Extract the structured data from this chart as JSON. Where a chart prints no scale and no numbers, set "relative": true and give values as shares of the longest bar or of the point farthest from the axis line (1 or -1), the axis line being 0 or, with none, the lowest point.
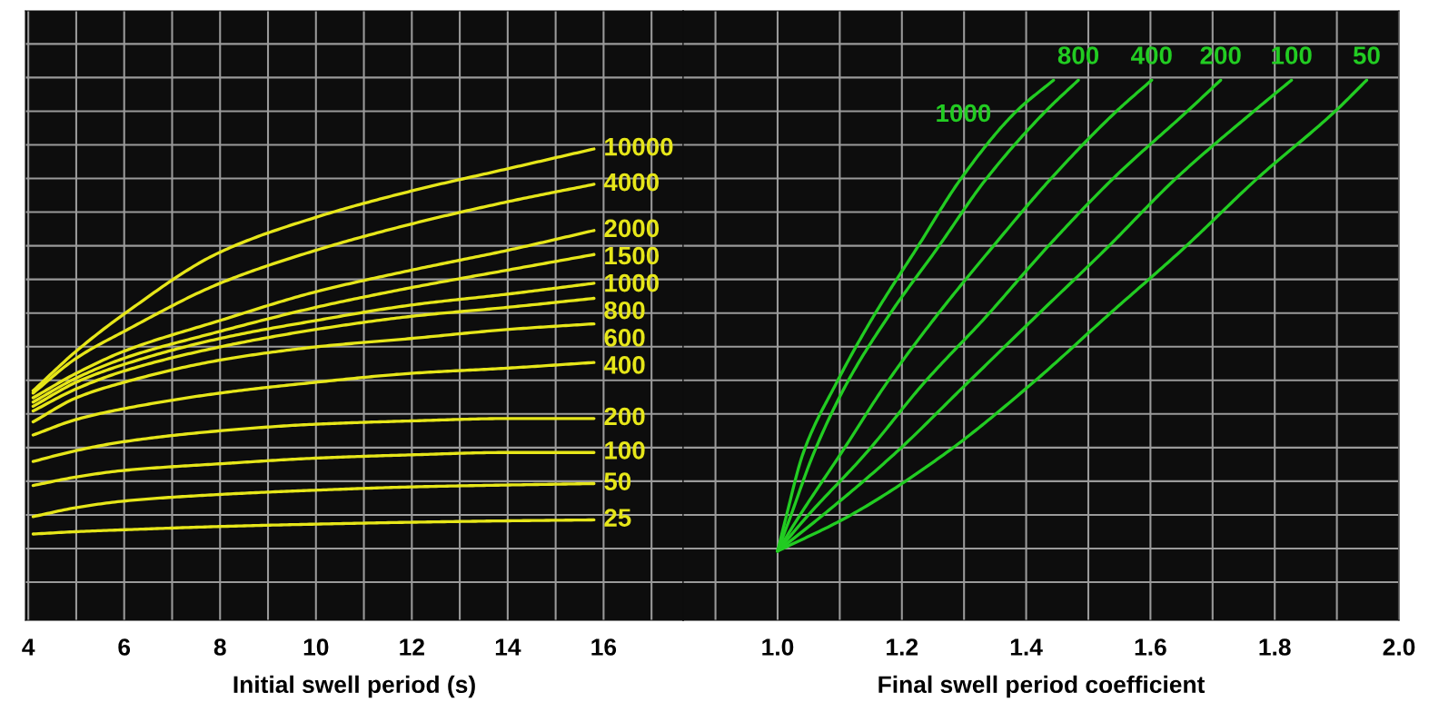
{
  "chart_data": [
    {
      "type": "line",
      "relative": true,
      "xlabel": "Initial swell period (s)",
      "xlim": [
        3.94,
        17.66
      ],
      "xticks": [
        4,
        {
          "value": 5,
          "label": null
        },
        6,
        {
          "value": 7,
          "label": null
        },
        8,
        {
          "value": 9,
          "label": null
        },
        10,
        {
          "value": 11,
          "label": null
        },
        12,
        {
          "value": 13,
          "label": null
        },
        14,
        {
          "value": 15,
          "label": null
        },
        16,
        {
          "value": 17,
          "label": null
        }
      ],
      "grid": true,
      "legend": false,
      "series": [
        {
          "name": "10000",
          "color": "#e6e619",
          "x": [
            4.1,
            5,
            6,
            8,
            10,
            12,
            14,
            15.8
          ],
          "values": [
            0.487,
            0.571,
            0.65,
            0.781,
            0.855,
            0.911,
            0.958,
            1.0
          ]
        },
        {
          "name": "4000",
          "color": "#e6e619",
          "x": [
            4.1,
            5,
            6,
            8,
            10,
            12,
            14,
            15.8
          ],
          "values": [
            0.482,
            0.556,
            0.613,
            0.715,
            0.785,
            0.841,
            0.888,
            0.925
          ]
        },
        {
          "name": "2000",
          "color": "#e6e619",
          "x": [
            4.1,
            5,
            6,
            8,
            10,
            12,
            14,
            15.8
          ],
          "values": [
            0.472,
            0.524,
            0.571,
            0.636,
            0.697,
            0.743,
            0.785,
            0.827
          ]
        },
        {
          "name": "1500",
          "color": "#e6e619",
          "x": [
            4.1,
            5,
            6,
            8,
            10,
            12,
            14,
            15.8
          ],
          "values": [
            0.463,
            0.514,
            0.556,
            0.613,
            0.664,
            0.706,
            0.743,
            0.776
          ]
        },
        {
          "name": "1000",
          "color": "#e6e619",
          "x": [
            4.1,
            5,
            6,
            8,
            10,
            12,
            14,
            15.8
          ],
          "values": [
            0.454,
            0.505,
            0.543,
            0.598,
            0.636,
            0.669,
            0.692,
            0.715
          ]
        },
        {
          "name": "800",
          "color": "#e6e619",
          "x": [
            4.1,
            5,
            6,
            8,
            10,
            12,
            14,
            15.8
          ],
          "values": [
            0.444,
            0.491,
            0.529,
            0.58,
            0.617,
            0.645,
            0.664,
            0.683
          ]
        },
        {
          "name": "600",
          "color": "#e6e619",
          "x": [
            4.1,
            5,
            6,
            8,
            10,
            12,
            14,
            15.8
          ],
          "values": [
            0.421,
            0.472,
            0.505,
            0.552,
            0.58,
            0.598,
            0.617,
            0.629
          ]
        },
        {
          "name": "400",
          "color": "#e6e619",
          "x": [
            4.1,
            5,
            6,
            8,
            10,
            12,
            14,
            15.8
          ],
          "values": [
            0.393,
            0.426,
            0.449,
            0.482,
            0.505,
            0.524,
            0.535,
            0.547
          ]
        },
        {
          "name": "200",
          "color": "#e6e619",
          "x": [
            4.1,
            5,
            6,
            8,
            10,
            12,
            14,
            15.8
          ],
          "values": [
            0.337,
            0.36,
            0.379,
            0.402,
            0.416,
            0.423,
            0.428,
            0.428
          ]
        },
        {
          "name": "100",
          "color": "#e6e619",
          "x": [
            4.1,
            5,
            6,
            8,
            10,
            12,
            14,
            15.8
          ],
          "values": [
            0.286,
            0.304,
            0.318,
            0.332,
            0.344,
            0.351,
            0.356,
            0.356
          ]
        },
        {
          "name": "50",
          "color": "#e6e619",
          "x": [
            4.1,
            5,
            6,
            8,
            10,
            12,
            14,
            15.8
          ],
          "values": [
            0.22,
            0.239,
            0.253,
            0.267,
            0.276,
            0.283,
            0.287,
            0.29
          ]
        },
        {
          "name": "25",
          "color": "#e6e619",
          "x": [
            4.1,
            5,
            6,
            8,
            10,
            12,
            14,
            15.8
          ],
          "values": [
            0.183,
            0.188,
            0.192,
            0.199,
            0.204,
            0.208,
            0.211,
            0.213
          ]
        }
      ]
    },
    {
      "type": "line",
      "relative": true,
      "xlabel": "Final swell period coefficient",
      "xlim": [
        0.848,
        2.0
      ],
      "xticks": [
        {
          "value": 0.9,
          "label": null
        },
        {
          "value": 1.0,
          "label": "1.0"
        },
        {
          "value": 1.1,
          "label": null
        },
        {
          "value": 1.2,
          "label": "1.2"
        },
        {
          "value": 1.3,
          "label": null
        },
        {
          "value": 1.4,
          "label": "1.4"
        },
        {
          "value": 1.5,
          "label": null
        },
        {
          "value": 1.6,
          "label": "1.6"
        },
        {
          "value": 1.7,
          "label": null
        },
        {
          "value": 1.8,
          "label": "1.8"
        },
        {
          "value": 1.9,
          "label": null
        },
        {
          "value": 2.0,
          "label": "2.0"
        }
      ],
      "grid": true,
      "legend": false,
      "series": [
        {
          "name": "1000",
          "color": "#22cc22",
          "x": [
            1.0,
            1.014,
            1.041,
            1.095,
            1.155,
            1.223,
            1.296,
            1.384,
            1.444
          ],
          "values": [
            0.128,
            0.193,
            0.309,
            0.44,
            0.564,
            0.687,
            0.819,
            0.942,
            1.0
          ]
        },
        {
          "name": "800",
          "color": "#22cc22",
          "x": [
            1.0,
            1.021,
            1.058,
            1.112,
            1.179,
            1.256,
            1.337,
            1.431,
            1.484
          ],
          "values": [
            0.128,
            0.193,
            0.309,
            0.44,
            0.564,
            0.687,
            0.819,
            0.942,
            1.0
          ]
        },
        {
          "name": "400",
          "color": "#22cc22",
          "x": [
            1.0,
            1.035,
            1.102,
            1.176,
            1.256,
            1.343,
            1.441,
            1.545,
            1.602
          ],
          "values": [
            0.128,
            0.193,
            0.309,
            0.44,
            0.564,
            0.687,
            0.819,
            0.942,
            1.0
          ]
        },
        {
          "name": "200",
          "color": "#22cc22",
          "x": [
            1.0,
            1.048,
            1.142,
            1.236,
            1.337,
            1.431,
            1.541,
            1.659,
            1.713
          ],
          "values": [
            0.128,
            0.193,
            0.309,
            0.44,
            0.564,
            0.687,
            0.819,
            0.942,
            1.0
          ]
        },
        {
          "name": "100",
          "color": "#22cc22",
          "x": [
            1.0,
            1.071,
            1.189,
            1.306,
            1.417,
            1.528,
            1.642,
            1.766,
            1.827
          ],
          "values": [
            0.128,
            0.193,
            0.309,
            0.44,
            0.564,
            0.687,
            0.819,
            0.942,
            1.0
          ]
        },
        {
          "name": "50",
          "color": "#22cc22",
          "x": [
            1.0,
            1.115,
            1.27,
            1.411,
            1.531,
            1.652,
            1.773,
            1.897,
            1.948
          ],
          "values": [
            0.128,
            0.193,
            0.309,
            0.44,
            0.564,
            0.687,
            0.819,
            0.942,
            1.0
          ]
        }
      ]
    }
  ]
}
